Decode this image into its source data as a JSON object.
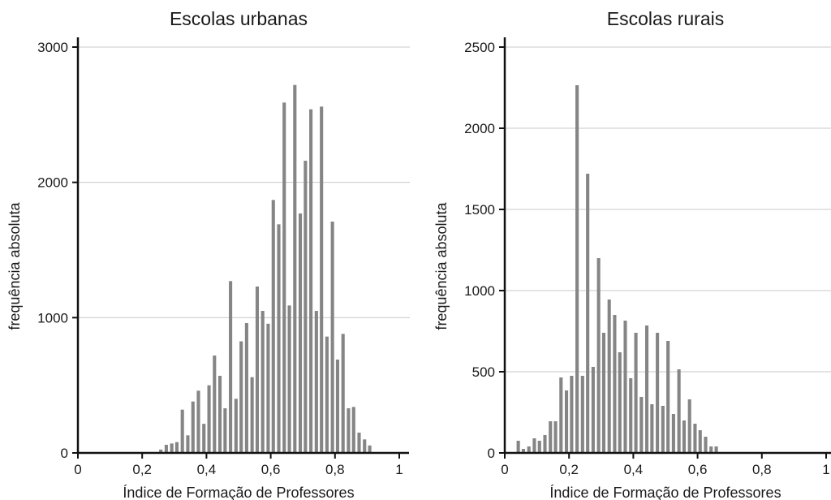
{
  "chart_data": [
    {
      "type": "bar",
      "title": "Escolas urbanas",
      "xlabel": "Índice de Formação de Professores",
      "ylabel": "frequência absoluta",
      "xlim": [
        0,
        1
      ],
      "ylim": [
        0,
        3000
      ],
      "xticks": [
        0,
        0.2,
        0.4,
        0.6,
        0.8,
        1
      ],
      "xtick_labels": [
        "0",
        "0,2",
        "0,4",
        "0,6",
        "0,8",
        "1"
      ],
      "yticks": [
        0,
        1000,
        2000,
        3000
      ],
      "ytick_labels": [
        "0",
        "1000",
        "2000",
        "3000"
      ],
      "grid": true,
      "bar_color": "#858585",
      "bin_width": 0.0167,
      "x": [
        0.258,
        0.275,
        0.292,
        0.308,
        0.325,
        0.342,
        0.358,
        0.375,
        0.392,
        0.408,
        0.425,
        0.442,
        0.458,
        0.475,
        0.492,
        0.508,
        0.525,
        0.542,
        0.558,
        0.575,
        0.592,
        0.608,
        0.625,
        0.642,
        0.658,
        0.675,
        0.692,
        0.708,
        0.725,
        0.742,
        0.758,
        0.775,
        0.792,
        0.808,
        0.825,
        0.842,
        0.858,
        0.875,
        0.892,
        0.908,
        0.925,
        0.942,
        0.958,
        0.975,
        0.992
      ],
      "values": [
        25,
        60,
        70,
        80,
        320,
        130,
        380,
        460,
        215,
        500,
        720,
        570,
        330,
        1270,
        400,
        825,
        960,
        560,
        1230,
        1050,
        955,
        1870,
        1690,
        2590,
        1090,
        2720,
        1770,
        2160,
        2540,
        1050,
        2560,
        860,
        1710,
        690,
        880,
        330,
        340,
        150,
        100,
        55,
        0,
        0,
        0,
        0,
        0
      ]
    },
    {
      "type": "bar",
      "title": "Escolas rurais",
      "xlabel": "Índice de Formação de Professores",
      "ylabel": "frequência absoluta",
      "xlim": [
        0,
        1
      ],
      "ylim": [
        0,
        2500
      ],
      "xticks": [
        0,
        0.2,
        0.4,
        0.6,
        0.8,
        1
      ],
      "xtick_labels": [
        "0",
        "0,2",
        "0,4",
        "0,6",
        "0,8",
        "1"
      ],
      "yticks": [
        0,
        500,
        1000,
        1500,
        2000,
        2500
      ],
      "ytick_labels": [
        "0",
        "500",
        "1000",
        "1500",
        "2000",
        "2500"
      ],
      "grid": true,
      "bar_color": "#858585",
      "bin_width": 0.0167,
      "x": [
        0.042,
        0.058,
        0.075,
        0.092,
        0.108,
        0.125,
        0.142,
        0.158,
        0.175,
        0.192,
        0.208,
        0.225,
        0.242,
        0.258,
        0.275,
        0.292,
        0.308,
        0.325,
        0.342,
        0.358,
        0.375,
        0.392,
        0.408,
        0.425,
        0.442,
        0.458,
        0.475,
        0.492,
        0.508,
        0.525,
        0.542,
        0.558,
        0.575,
        0.592,
        0.608,
        0.625,
        0.642,
        0.658,
        0.675,
        0.692,
        0.708,
        0.725,
        0.742,
        0.758,
        0.775,
        0.792,
        0.808,
        0.825,
        0.842,
        0.858,
        0.875,
        0.892
      ],
      "values": [
        75,
        25,
        40,
        90,
        75,
        110,
        195,
        195,
        465,
        385,
        475,
        2265,
        475,
        1720,
        530,
        1200,
        740,
        945,
        850,
        620,
        815,
        460,
        740,
        345,
        785,
        300,
        740,
        290,
        690,
        240,
        515,
        200,
        330,
        180,
        140,
        100,
        40,
        40,
        0,
        0,
        0,
        0,
        0,
        0,
        0,
        0,
        0,
        0,
        0,
        0,
        0,
        0
      ]
    }
  ]
}
